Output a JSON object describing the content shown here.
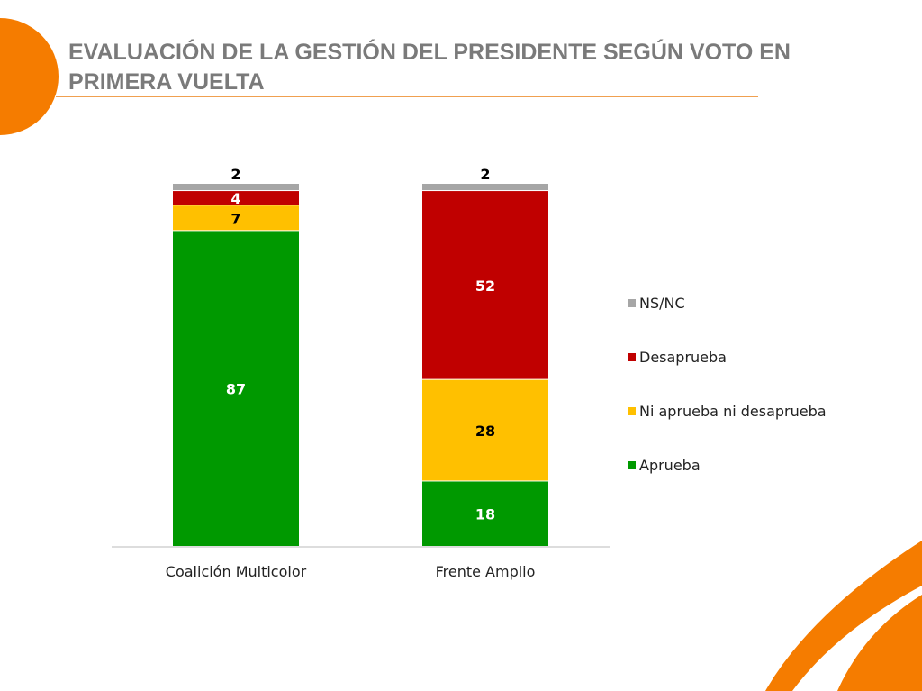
{
  "title": "EVALUACIÓN DE LA GESTIÓN DEL PRESIDENTE SEGÚN VOTO EN PRIMERA VUELTA",
  "chart_data": {
    "type": "bar",
    "stacked": true,
    "title": "EVALUACIÓN DE LA GESTIÓN DEL PRESIDENTE SEGÚN VOTO EN PRIMERA VUELTA",
    "categories": [
      "Coalición Multicolor",
      "Frente Amplio"
    ],
    "series": [
      {
        "name": "Aprueba",
        "values": [
          87,
          18
        ],
        "color": "#009900",
        "label_color": "#ffffff"
      },
      {
        "name": "Ni aprueba ni desaprueba",
        "values": [
          7,
          28
        ],
        "color": "#ffc000",
        "label_color": "#000000"
      },
      {
        "name": "Desaprueba",
        "values": [
          4,
          52
        ],
        "color": "#c00000",
        "label_color": "#ffffff"
      },
      {
        "name": "NS/NC",
        "values": [
          2,
          2
        ],
        "color": "#a6a6a6",
        "label_color": "#000000"
      }
    ],
    "ylim": [
      0,
      100
    ],
    "grid": false,
    "legend_position": "right"
  },
  "decor": {
    "accent": "#f57c00"
  }
}
